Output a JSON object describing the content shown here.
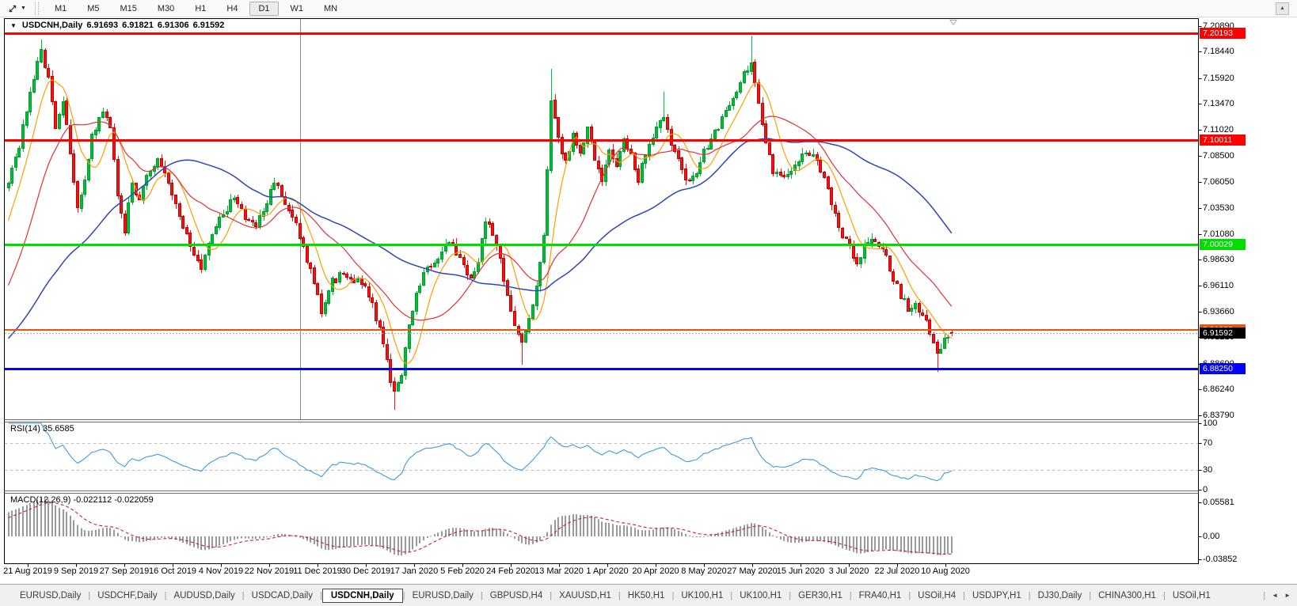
{
  "icons": {
    "dropdown": "▼",
    "collapse": "▼",
    "scroll_up": "▲",
    "tabs_left": "◄",
    "tabs_right": "►",
    "tab_separator": "|"
  },
  "toolbar": {
    "cursor_tool_icon": "crosshair-diagonal-icon",
    "timeframes": [
      "M1",
      "M5",
      "M15",
      "M30",
      "H1",
      "H4",
      "D1",
      "W1",
      "MN"
    ],
    "selected_timeframe": "D1"
  },
  "chart": {
    "title": {
      "symbol": "USDCNH,Daily",
      "open": "6.91693",
      "high": "6.91821",
      "low": "6.91306",
      "close": "6.91592"
    },
    "price_axis_ticks": [
      "7.20890",
      "7.18440",
      "7.15920",
      "7.13470",
      "7.11020",
      "7.08500",
      "7.06050",
      "7.03530",
      "7.01080",
      "6.98630",
      "6.96110",
      "6.93660",
      "6.91210",
      "6.88690",
      "6.86240",
      "6.83790"
    ],
    "horizontal_lines": [
      {
        "price": 7.20193,
        "label": "7.20193",
        "color": "#ff0000",
        "width": 3
      },
      {
        "price": 7.10011,
        "label": "7.10011",
        "color": "#ff0000",
        "width": 3
      },
      {
        "price": 7.00029,
        "label": "7.00029",
        "color": "#00dd00",
        "width": 3
      },
      {
        "price": 6.91922,
        "label": "6.91922",
        "color": "#e8570e",
        "width": 2
      },
      {
        "price": 6.8825,
        "label": "6.88250",
        "color": "#0000ff",
        "width": 3
      }
    ],
    "bid_line": {
      "price": 6.91592,
      "label": "6.91592",
      "tag_color": "#000000"
    },
    "date_labels": [
      "21 Aug 2019",
      "9 Sep 2019",
      "27 Sep 2019",
      "16 Oct 2019",
      "4 Nov 2019",
      "22 Nov 2019",
      "11 Dec 2019",
      "30 Dec 2019",
      "17 Jan 2020",
      "5 Feb 2020",
      "24 Feb 2020",
      "13 Mar 2020",
      "1 Apr 2020",
      "20 Apr 2020",
      "8 May 2020",
      "27 May 2020",
      "15 Jun 2020",
      "3 Jul 2020",
      "22 Jul 2020",
      "10 Aug 2020"
    ]
  },
  "chart_data": {
    "type": "candlestick",
    "symbol": "USDCNH",
    "timeframe": "Daily",
    "title": "USDCNH,Daily 6.91693 6.91821 6.91306 6.91592",
    "bar_count": 260,
    "ylim": [
      6.834,
      7.2155
    ],
    "last_bar": {
      "o": 6.91693,
      "h": 6.91821,
      "l": 6.91306,
      "c": 6.91592
    },
    "price_anchors": [
      [
        0,
        7.062
      ],
      [
        3,
        7.095
      ],
      [
        6,
        7.148
      ],
      [
        9,
        7.186
      ],
      [
        11,
        7.16
      ],
      [
        13,
        7.115
      ],
      [
        15,
        7.14
      ],
      [
        17,
        7.09
      ],
      [
        19,
        7.034
      ],
      [
        21,
        7.06
      ],
      [
        23,
        7.105
      ],
      [
        26,
        7.126
      ],
      [
        28,
        7.115
      ],
      [
        30,
        7.05
      ],
      [
        32,
        7.015
      ],
      [
        34,
        7.06
      ],
      [
        36,
        7.042
      ],
      [
        38,
        7.07
      ],
      [
        41,
        7.08
      ],
      [
        44,
        7.062
      ],
      [
        47,
        7.03
      ],
      [
        50,
        7.0
      ],
      [
        53,
        6.978
      ],
      [
        56,
        7.01
      ],
      [
        59,
        7.03
      ],
      [
        62,
        7.046
      ],
      [
        65,
        7.028
      ],
      [
        68,
        7.018
      ],
      [
        71,
        7.04
      ],
      [
        73,
        7.062
      ],
      [
        75,
        7.045
      ],
      [
        78,
        7.028
      ],
      [
        81,
        7.0
      ],
      [
        84,
        6.962
      ],
      [
        86,
        6.938
      ],
      [
        89,
        6.966
      ],
      [
        92,
        6.973
      ],
      [
        95,
        6.968
      ],
      [
        98,
        6.96
      ],
      [
        100,
        6.943
      ],
      [
        102,
        6.92
      ],
      [
        104,
        6.888
      ],
      [
        106,
        6.858
      ],
      [
        108,
        6.875
      ],
      [
        110,
        6.928
      ],
      [
        113,
        6.965
      ],
      [
        116,
        6.982
      ],
      [
        119,
        6.995
      ],
      [
        121,
        7.006
      ],
      [
        124,
        6.988
      ],
      [
        127,
        6.966
      ],
      [
        129,
        6.985
      ],
      [
        131,
        7.024
      ],
      [
        133,
        7.012
      ],
      [
        135,
        6.988
      ],
      [
        137,
        6.95
      ],
      [
        139,
        6.92
      ],
      [
        141,
        6.905
      ],
      [
        143,
        6.932
      ],
      [
        145,
        6.962
      ],
      [
        147,
        7.01
      ],
      [
        149,
        7.135
      ],
      [
        151,
        7.103
      ],
      [
        153,
        7.078
      ],
      [
        155,
        7.108
      ],
      [
        157,
        7.088
      ],
      [
        159,
        7.112
      ],
      [
        161,
        7.082
      ],
      [
        163,
        7.062
      ],
      [
        165,
        7.088
      ],
      [
        167,
        7.075
      ],
      [
        169,
        7.098
      ],
      [
        171,
        7.085
      ],
      [
        173,
        7.064
      ],
      [
        175,
        7.088
      ],
      [
        178,
        7.115
      ],
      [
        180,
        7.122
      ],
      [
        182,
        7.095
      ],
      [
        185,
        7.072
      ],
      [
        187,
        7.058
      ],
      [
        189,
        7.07
      ],
      [
        191,
        7.088
      ],
      [
        193,
        7.1
      ],
      [
        196,
        7.12
      ],
      [
        199,
        7.14
      ],
      [
        202,
        7.162
      ],
      [
        204,
        7.172
      ],
      [
        206,
        7.138
      ],
      [
        208,
        7.095
      ],
      [
        210,
        7.072
      ],
      [
        213,
        7.065
      ],
      [
        216,
        7.078
      ],
      [
        219,
        7.088
      ],
      [
        221,
        7.084
      ],
      [
        224,
        7.068
      ],
      [
        226,
        7.042
      ],
      [
        228,
        7.015
      ],
      [
        231,
        7.0
      ],
      [
        233,
        6.982
      ],
      [
        235,
        6.998
      ],
      [
        238,
        7.006
      ],
      [
        241,
        6.99
      ],
      [
        243,
        6.968
      ],
      [
        245,
        6.952
      ],
      [
        247,
        6.94
      ],
      [
        249,
        6.944
      ],
      [
        251,
        6.935
      ],
      [
        253,
        6.916
      ],
      [
        255,
        6.9
      ],
      [
        257,
        6.908
      ],
      [
        259,
        6.916
      ]
    ],
    "spikes": [
      {
        "i": 9,
        "h": 7.196
      },
      {
        "i": 106,
        "l": 6.843
      },
      {
        "i": 141,
        "l": 6.886
      },
      {
        "i": 149,
        "h": 7.168
      },
      {
        "i": 180,
        "h": 7.146
      },
      {
        "i": 204,
        "h": 7.1995
      },
      {
        "i": 255,
        "l": 6.879
      }
    ],
    "vertical_line_index": 80,
    "moving_averages": [
      {
        "name": "fast",
        "period": 8,
        "color": "#ff9e00"
      },
      {
        "name": "medium",
        "period": 21,
        "color": "#e03232"
      },
      {
        "name": "slow",
        "period": 55,
        "color": "#2e46b4"
      }
    ]
  },
  "rsi": {
    "label": "RSI(14) 35.6585",
    "period": 14,
    "current": 35.6585,
    "levels": [
      70,
      30
    ],
    "axis_labels": [
      "100",
      "70",
      "30",
      "0"
    ],
    "color": "#3e9ade"
  },
  "macd": {
    "label": "MACD(12,26,9) -0.022112 -0.022059",
    "fast": 12,
    "slow": 26,
    "signal": 9,
    "values": [
      -0.022112,
      -0.022059
    ],
    "axis_labels": [
      "0.05581",
      "0.00",
      "-0.03852"
    ],
    "histogram_color": "#9a9a9a",
    "signal_color": "#d02020"
  },
  "colors": {
    "candle_up": "#00be3c",
    "candle_up_edge": "#00a028",
    "candle_down": "#f01414",
    "candle_down_edge": "#c80000",
    "bid_dotted": "#a8a8a8",
    "frame": "#000000",
    "separator": "#6a6a6a"
  },
  "tabs": {
    "active_index": 4,
    "items": [
      "EURUSD,Daily",
      "USDCHF,Daily",
      "AUDUSD,Daily",
      "USDCAD,Daily",
      "USDCNH,Daily",
      "EURUSD,Daily",
      "GBPUSD,H4",
      "XAUUSD,H1",
      "HK50,H1",
      "UK100,H1",
      "UK100,H1",
      "GER30,H1",
      "FRA40,H1",
      "USOil,H4",
      "USDJPY,H1",
      "DJ30,Daily",
      "CHINA300,H1",
      "USOil,H1"
    ]
  }
}
